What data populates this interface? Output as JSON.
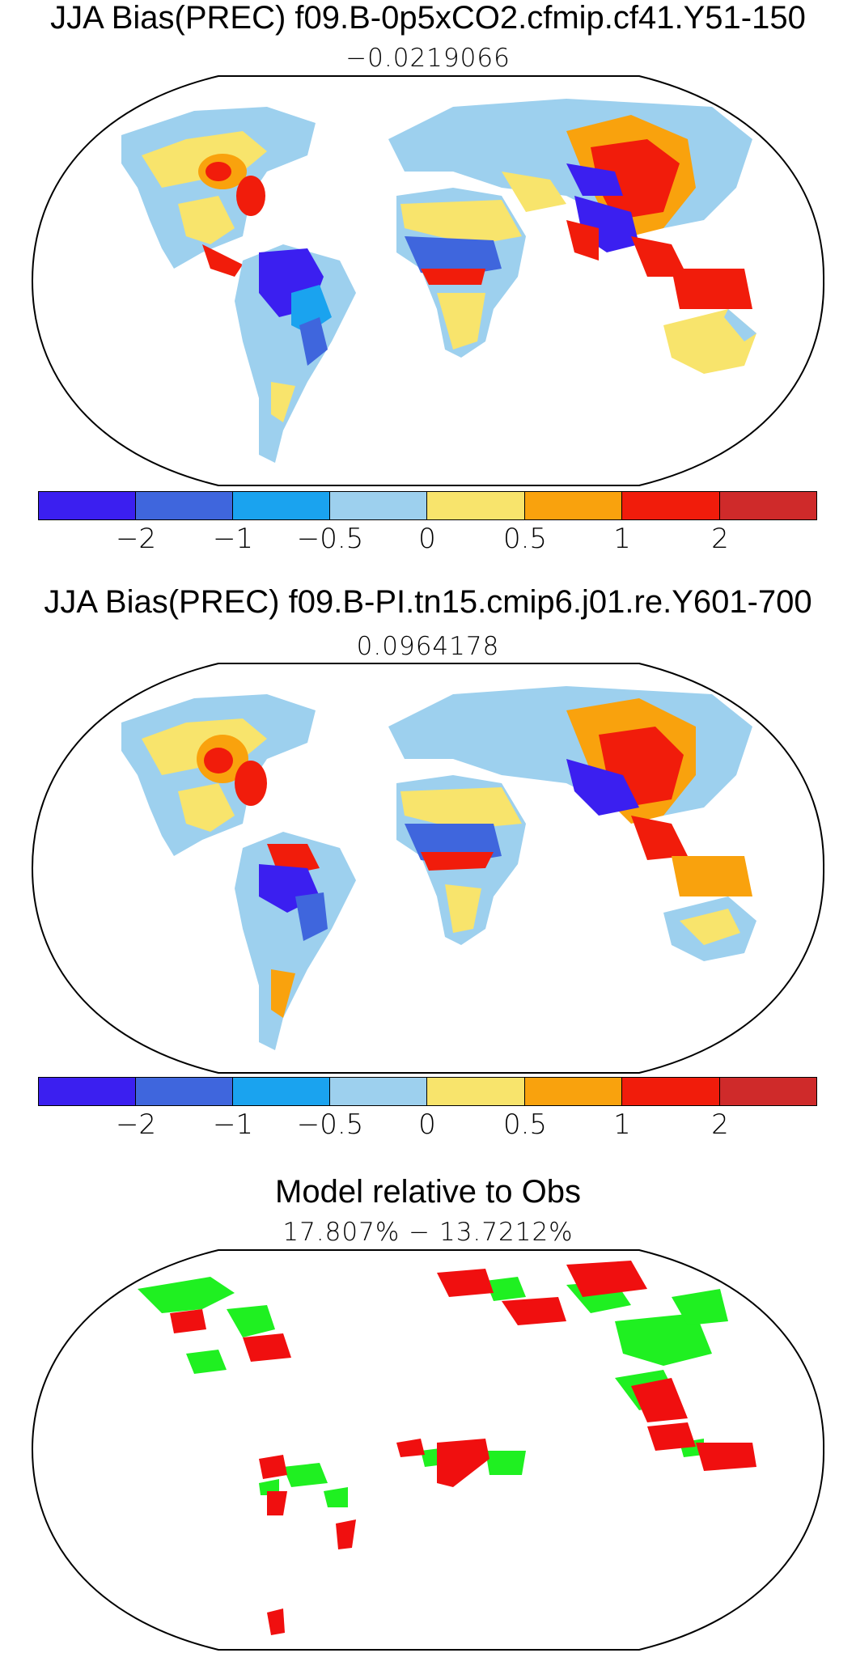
{
  "panels": [
    {
      "title": "JJA Bias(PREC) f09.B-0p5xCO2.cfmip.cf41.Y51-150",
      "subtitle": "−0.0219066"
    },
    {
      "title": "JJA Bias(PREC) f09.B-PI.tn15.cmip6.j01.re.Y601-700",
      "subtitle": "0.0964178"
    },
    {
      "title": "Model relative to Obs",
      "subtitle": "17.807% − 13.7212%"
    }
  ],
  "colorbar": {
    "colors": [
      "#3b1ff0",
      "#3f66dd",
      "#1aa3ef",
      "#9dd0ee",
      "#f8e46c",
      "#f9a20d",
      "#f11c0b",
      "#cf2a2a"
    ],
    "tick_labels": [
      "−2",
      "−1",
      "−0.5",
      "0",
      "0.5",
      "1",
      "2"
    ]
  },
  "relative_colors": {
    "better": "#1ff021",
    "worse": "#f00f0f"
  }
}
